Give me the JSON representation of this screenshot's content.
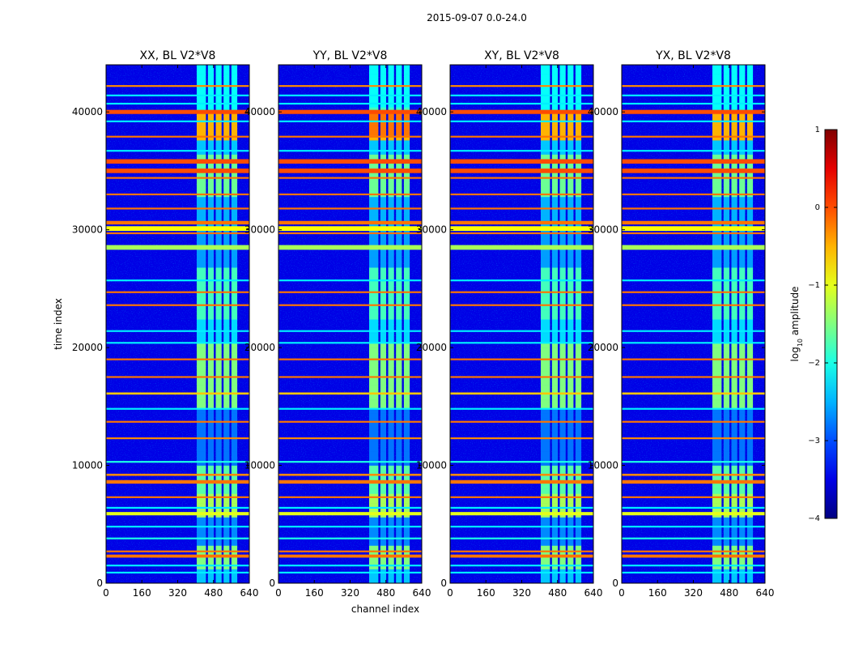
{
  "figure": {
    "suptitle": "2015-09-07 0.0-24.0",
    "xlabel": "channel index",
    "ylabel": "time index"
  },
  "chart_data": {
    "type": "heatmap",
    "x_range": [
      0,
      640
    ],
    "y_range": [
      0,
      44000
    ],
    "x_ticks": [
      0,
      160,
      320,
      480,
      640
    ],
    "y_ticks": [
      0,
      10000,
      20000,
      30000,
      40000
    ],
    "panels": [
      {
        "title": "XX, BL V2*V8",
        "polarization": "XX"
      },
      {
        "title": "YY, BL V2*V8",
        "polarization": "YY"
      },
      {
        "title": "XY, BL V2*V8",
        "polarization": "XY"
      },
      {
        "title": "YX, BL V2*V8",
        "polarization": "YX"
      }
    ],
    "colorbar": {
      "label_main": "log",
      "label_sub": "10",
      "label_rest": " amplitude",
      "range": [
        -4,
        1
      ],
      "ticks": [
        1,
        0,
        -1,
        -2,
        -3,
        -4
      ],
      "tick_labels": [
        "1",
        "0",
        "−1",
        "−2",
        "−3",
        "−4"
      ],
      "colormap": "jet"
    },
    "channel_bands": [
      [
        405,
        445
      ],
      [
        455,
        480
      ],
      [
        490,
        515
      ],
      [
        525,
        550
      ],
      [
        560,
        585
      ]
    ],
    "rfi_rows": [
      {
        "y": 900,
        "level": -2.2,
        "w": 150
      },
      {
        "y": 1500,
        "level": -2.2,
        "w": 150
      },
      {
        "y": 2300,
        "level": -0.2,
        "w": 260
      },
      {
        "y": 2700,
        "level": -0.2,
        "w": 150
      },
      {
        "y": 3800,
        "level": -2.0,
        "w": 150
      },
      {
        "y": 4800,
        "level": -2.2,
        "w": 150
      },
      {
        "y": 5900,
        "level": -1.0,
        "w": 280
      },
      {
        "y": 6400,
        "level": -2.2,
        "w": 150
      },
      {
        "y": 7300,
        "level": -0.2,
        "w": 150
      },
      {
        "y": 8600,
        "level": -0.2,
        "w": 300
      },
      {
        "y": 9200,
        "level": -0.3,
        "w": 180
      },
      {
        "y": 10300,
        "level": -2.0,
        "w": 150
      },
      {
        "y": 12300,
        "level": -0.3,
        "w": 150
      },
      {
        "y": 13700,
        "level": -0.2,
        "w": 150
      },
      {
        "y": 14800,
        "level": -2.2,
        "w": 150
      },
      {
        "y": 16100,
        "level": -0.6,
        "w": 180
      },
      {
        "y": 17500,
        "level": -0.2,
        "w": 150
      },
      {
        "y": 19000,
        "level": -0.2,
        "w": 150
      },
      {
        "y": 20400,
        "level": -2.2,
        "w": 150
      },
      {
        "y": 21400,
        "level": -2.2,
        "w": 150
      },
      {
        "y": 23600,
        "level": -0.2,
        "w": 150
      },
      {
        "y": 24700,
        "level": -0.2,
        "w": 150
      },
      {
        "y": 25700,
        "level": -2.2,
        "w": 150
      },
      {
        "y": 28500,
        "level": -1.3,
        "w": 400
      },
      {
        "y": 29700,
        "level": -0.2,
        "w": 150
      },
      {
        "y": 30100,
        "level": -0.9,
        "w": 400
      },
      {
        "y": 30600,
        "level": -0.2,
        "w": 300
      },
      {
        "y": 31800,
        "level": -0.2,
        "w": 150
      },
      {
        "y": 33000,
        "level": -0.2,
        "w": 150
      },
      {
        "y": 34400,
        "level": -0.2,
        "w": 150
      },
      {
        "y": 35000,
        "level": 0.0,
        "w": 380
      },
      {
        "y": 35800,
        "level": 0.0,
        "w": 380
      },
      {
        "y": 36700,
        "level": -2.2,
        "w": 150
      },
      {
        "y": 37900,
        "level": -0.2,
        "w": 150
      },
      {
        "y": 39200,
        "level": -2.2,
        "w": 150
      },
      {
        "y": 40000,
        "level": 0.0,
        "w": 350
      },
      {
        "y": 40700,
        "level": -2.2,
        "w": 150
      },
      {
        "y": 41400,
        "level": -2.2,
        "w": 150
      },
      {
        "y": 42200,
        "level": -0.3,
        "w": 150
      }
    ]
  }
}
